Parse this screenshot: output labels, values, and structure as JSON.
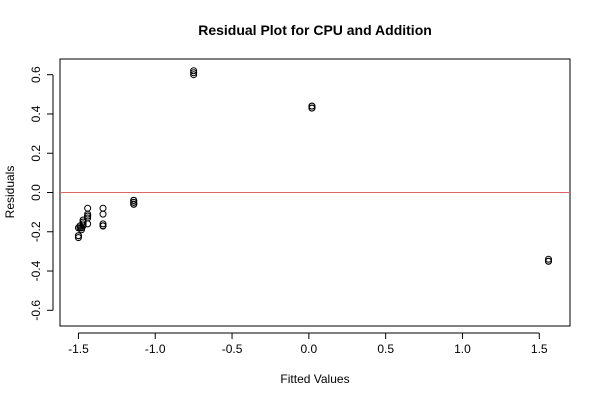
{
  "chart_data": {
    "type": "scatter",
    "title": "Residual Plot for CPU and Addition",
    "xlabel": "Fitted Values",
    "ylabel": "Residuals",
    "xlim": [
      -1.62,
      1.7
    ],
    "ylim": [
      -0.68,
      0.68
    ],
    "x_ticks": [
      -1.5,
      -1.0,
      -0.5,
      0.0,
      0.5,
      1.0,
      1.5
    ],
    "x_tick_labels": [
      "-1.5",
      "-1.0",
      "-0.5",
      "0.0",
      "0.5",
      "1.0",
      "1.5"
    ],
    "y_ticks": [
      -0.6,
      -0.4,
      -0.2,
      0.0,
      0.2,
      0.4,
      0.6
    ],
    "y_tick_labels": [
      "-0.6",
      "-0.4",
      "-0.2",
      "0.0",
      "0.2",
      "0.4",
      "0.6"
    ],
    "reference_line": {
      "y": 0.0,
      "color": "#e06666"
    },
    "point_color": "#000000",
    "grid": false,
    "x": [
      -1.5,
      -1.5,
      -1.5,
      -1.5,
      -1.49,
      -1.49,
      -1.48,
      -1.48,
      -1.47,
      -1.47,
      -1.47,
      -1.47,
      -1.47,
      -1.44,
      -1.44,
      -1.44,
      -1.44,
      -1.44,
      -1.44,
      -1.34,
      -1.34,
      -1.34,
      -1.34,
      -1.34,
      -1.34,
      -1.14,
      -1.14,
      -1.14,
      -1.14,
      -1.14,
      -1.14,
      -0.75,
      -0.75,
      -0.75,
      0.02,
      0.02,
      0.02,
      0.02,
      1.56,
      1.56,
      1.56
    ],
    "y": [
      -0.22,
      -0.23,
      -0.22,
      -0.18,
      -0.18,
      -0.17,
      -0.19,
      -0.18,
      -0.15,
      -0.16,
      -0.17,
      -0.15,
      -0.14,
      -0.16,
      -0.12,
      -0.13,
      -0.12,
      -0.11,
      -0.08,
      -0.17,
      -0.17,
      -0.17,
      -0.16,
      -0.11,
      -0.08,
      -0.04,
      -0.05,
      -0.06,
      -0.05,
      -0.04,
      -0.06,
      0.62,
      0.6,
      0.61,
      0.43,
      0.44,
      0.43,
      0.44,
      -0.35,
      -0.34,
      -0.35
    ]
  }
}
